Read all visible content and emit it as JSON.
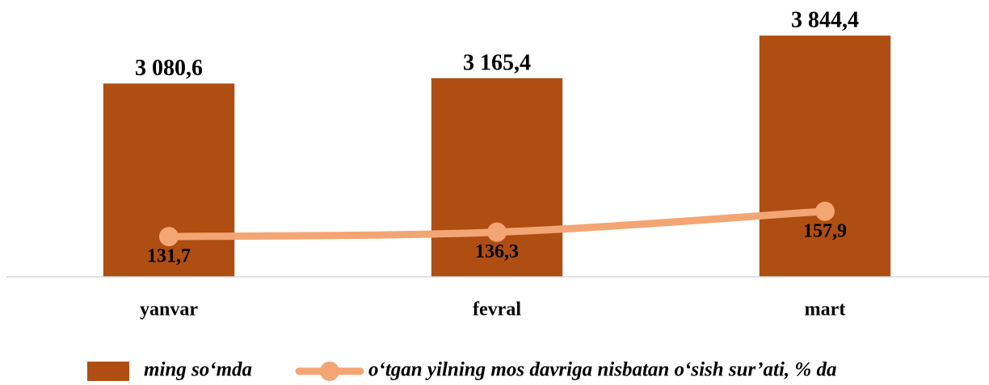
{
  "chart_data": {
    "type": "bar",
    "categories": [
      "yanvar",
      "fevral",
      "mart"
    ],
    "series": [
      {
        "name": "ming so‘mda",
        "type": "bar",
        "color": "#ae4e13",
        "values": [
          3080.6,
          3165.4,
          3844.4
        ],
        "value_labels": [
          "3 080,6",
          "3 165,4",
          "3 844,4"
        ]
      },
      {
        "name": "o‘tgan yilning mos davriga nisbatan o‘sish sur’ati, % da",
        "type": "line",
        "axis": "y2",
        "color": "#f4a574",
        "values": [
          131.7,
          136.3,
          157.9
        ],
        "value_labels": [
          "131,7",
          "136,3",
          "157,9"
        ]
      }
    ],
    "ylim": [
      0,
      4000
    ],
    "y2lim": [
      90,
      350
    ],
    "legend": "bottom",
    "legend_text_color": "#c0272d"
  }
}
